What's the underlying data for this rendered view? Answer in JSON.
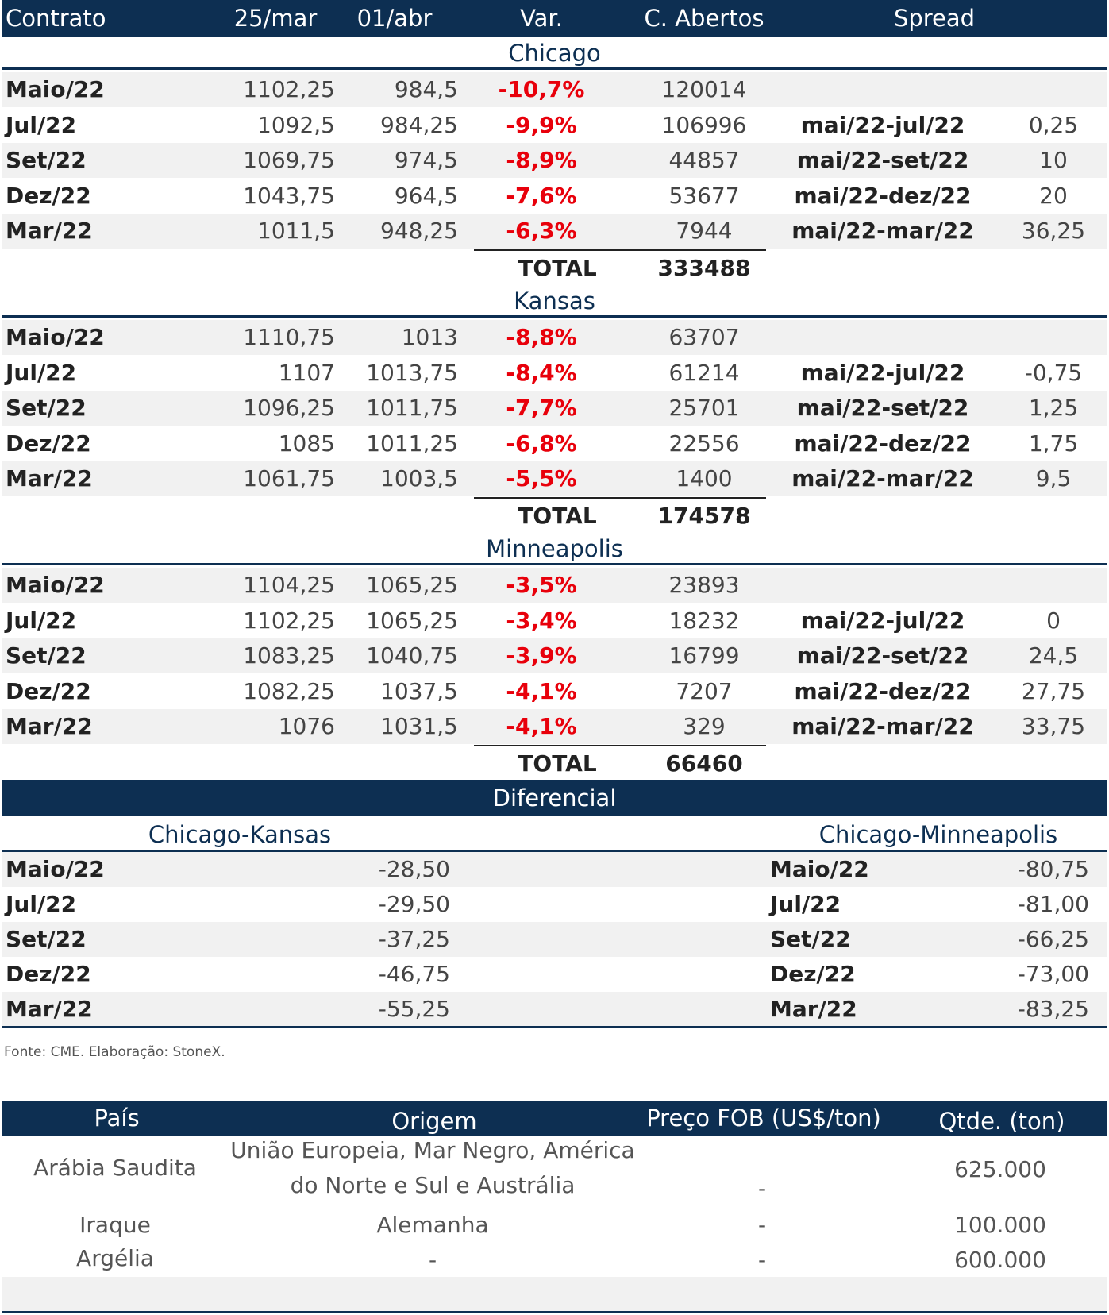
{
  "header": {
    "col_contrato": "Contrato",
    "col_d1": "25/mar",
    "col_d2": "01/abr",
    "col_var": "Var.",
    "col_oi": "C. Abertos",
    "col_spread": "Spread"
  },
  "sections": [
    {
      "name": "Chicago",
      "total_label": "TOTAL",
      "total": "333488",
      "rows": [
        {
          "contrato": "Maio/22",
          "d1": "1102,25",
          "d2": "984,5",
          "var": "-10,7%",
          "oi": "120014",
          "spread_label": "",
          "spread_val": ""
        },
        {
          "contrato": "Jul/22",
          "d1": "1092,5",
          "d2": "984,25",
          "var": "-9,9%",
          "oi": "106996",
          "spread_label": "mai/22-jul/22",
          "spread_val": "0,25"
        },
        {
          "contrato": "Set/22",
          "d1": "1069,75",
          "d2": "974,5",
          "var": "-8,9%",
          "oi": "44857",
          "spread_label": "mai/22-set/22",
          "spread_val": "10"
        },
        {
          "contrato": "Dez/22",
          "d1": "1043,75",
          "d2": "964,5",
          "var": "-7,6%",
          "oi": "53677",
          "spread_label": "mai/22-dez/22",
          "spread_val": "20"
        },
        {
          "contrato": "Mar/22",
          "d1": "1011,5",
          "d2": "948,25",
          "var": "-6,3%",
          "oi": "7944",
          "spread_label": "mai/22-mar/22",
          "spread_val": "36,25"
        }
      ]
    },
    {
      "name": "Kansas",
      "total_label": "TOTAL",
      "total": "174578",
      "rows": [
        {
          "contrato": "Maio/22",
          "d1": "1110,75",
          "d2": "1013",
          "var": "-8,8%",
          "oi": "63707",
          "spread_label": "",
          "spread_val": ""
        },
        {
          "contrato": "Jul/22",
          "d1": "1107",
          "d2": "1013,75",
          "var": "-8,4%",
          "oi": "61214",
          "spread_label": "mai/22-jul/22",
          "spread_val": "-0,75"
        },
        {
          "contrato": "Set/22",
          "d1": "1096,25",
          "d2": "1011,75",
          "var": "-7,7%",
          "oi": "25701",
          "spread_label": "mai/22-set/22",
          "spread_val": "1,25"
        },
        {
          "contrato": "Dez/22",
          "d1": "1085",
          "d2": "1011,25",
          "var": "-6,8%",
          "oi": "22556",
          "spread_label": "mai/22-dez/22",
          "spread_val": "1,75"
        },
        {
          "contrato": "Mar/22",
          "d1": "1061,75",
          "d2": "1003,5",
          "var": "-5,5%",
          "oi": "1400",
          "spread_label": "mai/22-mar/22",
          "spread_val": "9,5"
        }
      ]
    },
    {
      "name": "Minneapolis",
      "total_label": "TOTAL",
      "total": "66460",
      "rows": [
        {
          "contrato": "Maio/22",
          "d1": "1104,25",
          "d2": "1065,25",
          "var": "-3,5%",
          "oi": "23893",
          "spread_label": "",
          "spread_val": ""
        },
        {
          "contrato": "Jul/22",
          "d1": "1102,25",
          "d2": "1065,25",
          "var": "-3,4%",
          "oi": "18232",
          "spread_label": "mai/22-jul/22",
          "spread_val": "0"
        },
        {
          "contrato": "Set/22",
          "d1": "1083,25",
          "d2": "1040,75",
          "var": "-3,9%",
          "oi": "16799",
          "spread_label": "mai/22-set/22",
          "spread_val": "24,5"
        },
        {
          "contrato": "Dez/22",
          "d1": "1082,25",
          "d2": "1037,5",
          "var": "-4,1%",
          "oi": "7207",
          "spread_label": "mai/22-dez/22",
          "spread_val": "27,75"
        },
        {
          "contrato": "Mar/22",
          "d1": "1076",
          "d2": "1031,5",
          "var": "-4,1%",
          "oi": "329",
          "spread_label": "mai/22-mar/22",
          "spread_val": "33,75"
        }
      ]
    }
  ],
  "diferencial": {
    "title": "Diferencial",
    "left_title": "Chicago-Kansas",
    "right_title": "Chicago-Minneapolis",
    "rows": [
      {
        "l_label": "Maio/22",
        "l_val": "-28,50",
        "r_label": "Maio/22",
        "r_val": "-80,75"
      },
      {
        "l_label": "Jul/22",
        "l_val": "-29,50",
        "r_label": "Jul/22",
        "r_val": "-81,00"
      },
      {
        "l_label": "Set/22",
        "l_val": "-37,25",
        "r_label": "Set/22",
        "r_val": "-66,25"
      },
      {
        "l_label": "Dez/22",
        "l_val": "-46,75",
        "r_label": "Dez/22",
        "r_val": "-73,00"
      },
      {
        "l_label": "Mar/22",
        "l_val": "-55,25",
        "r_label": "Mar/22",
        "r_val": "-83,25"
      }
    ]
  },
  "source_note": "Fonte: CME. Elaboração: StoneX.",
  "table2": {
    "col_pais": "País",
    "col_origem": "Origem",
    "col_preco": "Preço FOB (US$/ton)",
    "col_qtde": "Qtde. (ton)",
    "rows": [
      {
        "pais": "Arábia Saudita",
        "origem_line1": "União Europeia, Mar Negro, América",
        "origem_line2": "do Norte e Sul e Austrália",
        "preco": "-",
        "qtde": "625.000"
      },
      {
        "pais": "Iraque",
        "origem": "Alemanha",
        "preco": "-",
        "qtde": "100.000"
      },
      {
        "pais": "Argélia",
        "origem": "-",
        "preco": "-",
        "qtde": "600.000"
      }
    ]
  },
  "colors": {
    "navy": "#0d2f52",
    "negative": "#e8000b",
    "shade": "#f1f1f1"
  }
}
